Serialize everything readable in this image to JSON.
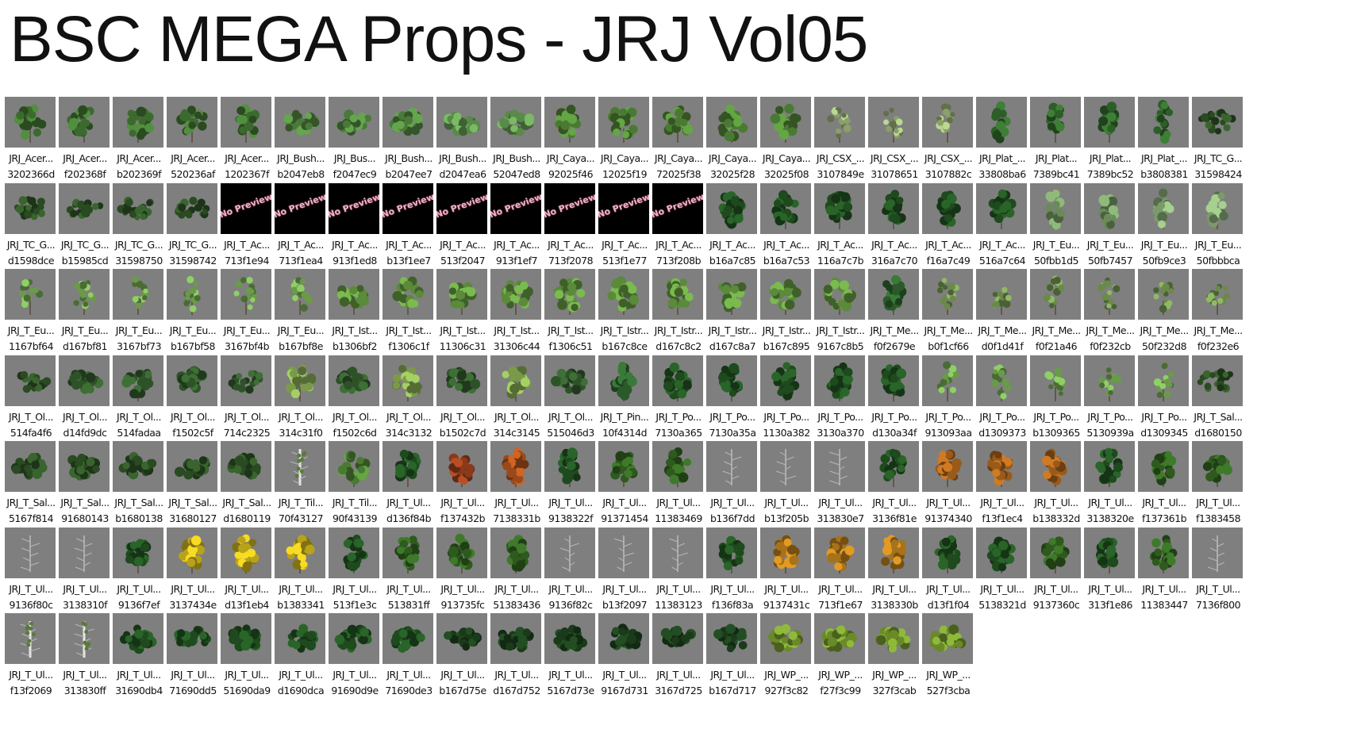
{
  "title": "BSC MEGA Props - JRJ Vol05",
  "colors": {
    "thumb_bg": "#7f7f7f",
    "no_preview_bg": "#000000",
    "no_preview_text": "#e9b8c8"
  },
  "items": [
    {
      "name": "JRJ_Acer...",
      "hash": "3202366d",
      "kind": "tree",
      "color": "#3c6a2e"
    },
    {
      "name": "JRJ_Acer...",
      "hash": "f202368f",
      "kind": "tree",
      "color": "#3c6a2e"
    },
    {
      "name": "JRJ_Acer...",
      "hash": "b202369f",
      "kind": "tree",
      "color": "#3c6a2e"
    },
    {
      "name": "JRJ_Acer...",
      "hash": "520236af",
      "kind": "tree",
      "color": "#3c6a2e"
    },
    {
      "name": "JRJ_Acer...",
      "hash": "1202367f",
      "kind": "tree",
      "color": "#3c6a2e"
    },
    {
      "name": "JRJ_Bush...",
      "hash": "b2047eb8",
      "kind": "bush",
      "color": "#4a7a3a"
    },
    {
      "name": "JRJ_Bus...",
      "hash": "f2047ec9",
      "kind": "bush",
      "color": "#4a7a3a"
    },
    {
      "name": "JRJ_Bush...",
      "hash": "b2047ee7",
      "kind": "bush",
      "color": "#4a7a3a"
    },
    {
      "name": "JRJ_Bush...",
      "hash": "d2047ea6",
      "kind": "bush",
      "color": "#5a8a4a"
    },
    {
      "name": "JRJ_Bush...",
      "hash": "52047ed8",
      "kind": "bush",
      "color": "#5a8a4a"
    },
    {
      "name": "JRJ_Caya...",
      "hash": "92025f46",
      "kind": "tree",
      "color": "#4a7a32"
    },
    {
      "name": "JRJ_Caya...",
      "hash": "12025f19",
      "kind": "tree",
      "color": "#4a7a32"
    },
    {
      "name": "JRJ_Caya...",
      "hash": "72025f38",
      "kind": "tree",
      "color": "#4a7a32"
    },
    {
      "name": "JRJ_Caya...",
      "hash": "32025f28",
      "kind": "tree",
      "color": "#4a7a32"
    },
    {
      "name": "JRJ_Caya...",
      "hash": "32025f08",
      "kind": "tree",
      "color": "#4a7a32"
    },
    {
      "name": "JRJ_CSX_...",
      "hash": "3107849e",
      "kind": "sparse",
      "color": "#8aa06a"
    },
    {
      "name": "JRJ_CSX_...",
      "hash": "31078651",
      "kind": "sparse",
      "color": "#8aa06a"
    },
    {
      "name": "JRJ_CSX_...",
      "hash": "3107882c",
      "kind": "sparse",
      "color": "#8aa06a"
    },
    {
      "name": "JRJ_Plat_...",
      "hash": "33808ba6",
      "kind": "tall",
      "color": "#2e5e28"
    },
    {
      "name": "JRJ_Plat...",
      "hash": "7389bc41",
      "kind": "tall",
      "color": "#2e5e28"
    },
    {
      "name": "JRJ_Plat...",
      "hash": "7389bc52",
      "kind": "tall",
      "color": "#2e5e28"
    },
    {
      "name": "JRJ_Plat_...",
      "hash": "b3808381",
      "kind": "tall",
      "color": "#2e5e28"
    },
    {
      "name": "JRJ_TC_G...",
      "hash": "31598424",
      "kind": "spread",
      "color": "#2a4a22"
    },
    {
      "name": "JRJ_TC_G...",
      "hash": "d1598dce",
      "kind": "spread",
      "color": "#2a4a22"
    },
    {
      "name": "JRJ_TC_G...",
      "hash": "b15985cd",
      "kind": "spread",
      "color": "#2a4a22"
    },
    {
      "name": "JRJ_TC_G...",
      "hash": "31598750",
      "kind": "spread",
      "color": "#2a4a22"
    },
    {
      "name": "JRJ_TC_G...",
      "hash": "31598742",
      "kind": "spread",
      "color": "#2a4a22"
    },
    {
      "name": "JRJ_T_Ac...",
      "hash": "713f1e94",
      "kind": "np",
      "color": "#000000"
    },
    {
      "name": "JRJ_T_Ac...",
      "hash": "713f1ea4",
      "kind": "np",
      "color": "#000000"
    },
    {
      "name": "JRJ_T_Ac...",
      "hash": "913f1ed8",
      "kind": "np",
      "color": "#000000"
    },
    {
      "name": "JRJ_T_Ac...",
      "hash": "b13f1ee7",
      "kind": "np",
      "color": "#000000"
    },
    {
      "name": "JRJ_T_Ac...",
      "hash": "513f2047",
      "kind": "np",
      "color": "#000000"
    },
    {
      "name": "JRJ_T_Ac...",
      "hash": "913f1ef7",
      "kind": "np",
      "color": "#000000"
    },
    {
      "name": "JRJ_T_Ac...",
      "hash": "713f2078",
      "kind": "np",
      "color": "#000000"
    },
    {
      "name": "JRJ_T_Ac...",
      "hash": "513f1e77",
      "kind": "np",
      "color": "#000000"
    },
    {
      "name": "JRJ_T_Ac...",
      "hash": "713f208b",
      "kind": "np",
      "color": "#000000"
    },
    {
      "name": "JRJ_T_Ac...",
      "hash": "b16a7c85",
      "kind": "round",
      "color": "#1e4a1e"
    },
    {
      "name": "JRJ_T_Ac...",
      "hash": "b16a7c53",
      "kind": "round",
      "color": "#1e4a1e"
    },
    {
      "name": "JRJ_T_Ac...",
      "hash": "116a7c7b",
      "kind": "round",
      "color": "#1e4a1e"
    },
    {
      "name": "JRJ_T_Ac...",
      "hash": "316a7c70",
      "kind": "round",
      "color": "#1e4a1e"
    },
    {
      "name": "JRJ_T_Ac...",
      "hash": "f16a7c49",
      "kind": "round",
      "color": "#1e4a1e"
    },
    {
      "name": "JRJ_T_Ac...",
      "hash": "516a7c64",
      "kind": "round",
      "color": "#1e4a1e"
    },
    {
      "name": "JRJ_T_Eu...",
      "hash": "50fbb1d5",
      "kind": "tall",
      "color": "#6a8a5a"
    },
    {
      "name": "JRJ_T_Eu...",
      "hash": "50fb7457",
      "kind": "tall",
      "color": "#6a8a5a"
    },
    {
      "name": "JRJ_T_Eu...",
      "hash": "50fb9ce3",
      "kind": "tall",
      "color": "#7a9a6a"
    },
    {
      "name": "JRJ_T_Eu...",
      "hash": "50fbbbca",
      "kind": "tall",
      "color": "#7a9a6a"
    },
    {
      "name": "JRJ_T_Eu...",
      "hash": "1167bf64",
      "kind": "sparse",
      "color": "#6a9a4a"
    },
    {
      "name": "JRJ_T_Eu...",
      "hash": "d167bf81",
      "kind": "sparse",
      "color": "#6a9a4a"
    },
    {
      "name": "JRJ_T_Eu...",
      "hash": "3167bf73",
      "kind": "sparse",
      "color": "#6a9a4a"
    },
    {
      "name": "JRJ_T_Eu...",
      "hash": "b167bf58",
      "kind": "sparse",
      "color": "#6a9a4a"
    },
    {
      "name": "JRJ_T_Eu...",
      "hash": "3167bf4b",
      "kind": "sparse",
      "color": "#6a9a4a"
    },
    {
      "name": "JRJ_T_Eu...",
      "hash": "b167bf8e",
      "kind": "sparse",
      "color": "#6a9a4a"
    },
    {
      "name": "JRJ_T_Ist...",
      "hash": "b1306bf2",
      "kind": "tree",
      "color": "#5a8a3a"
    },
    {
      "name": "JRJ_T_Ist...",
      "hash": "f1306c1f",
      "kind": "tree",
      "color": "#5a8a3a"
    },
    {
      "name": "JRJ_T_Ist...",
      "hash": "11306c31",
      "kind": "tree",
      "color": "#5a8a3a"
    },
    {
      "name": "JRJ_T_Ist...",
      "hash": "31306c44",
      "kind": "tree",
      "color": "#5a8a3a"
    },
    {
      "name": "JRJ_T_Ist...",
      "hash": "f1306c51",
      "kind": "tree",
      "color": "#5a8a3a"
    },
    {
      "name": "JRJ_T_Istr...",
      "hash": "b167c8ce",
      "kind": "tree",
      "color": "#5a8a3a"
    },
    {
      "name": "JRJ_T_Istr...",
      "hash": "d167c8c2",
      "kind": "tree",
      "color": "#5a8a3a"
    },
    {
      "name": "JRJ_T_Istr...",
      "hash": "d167c8a7",
      "kind": "tree",
      "color": "#5a8a3a"
    },
    {
      "name": "JRJ_T_Istr...",
      "hash": "b167c895",
      "kind": "tree",
      "color": "#5a8a3a"
    },
    {
      "name": "JRJ_T_Istr...",
      "hash": "9167c8b5",
      "kind": "tree",
      "color": "#5a8a3a"
    },
    {
      "name": "JRJ_T_Me...",
      "hash": "f0f2679e",
      "kind": "round",
      "color": "#2a5a2a"
    },
    {
      "name": "JRJ_T_Me...",
      "hash": "b0f1cf66",
      "kind": "sparse",
      "color": "#6a8a4a"
    },
    {
      "name": "JRJ_T_Me...",
      "hash": "d0f1d41f",
      "kind": "sparse",
      "color": "#6a8a4a"
    },
    {
      "name": "JRJ_T_Me...",
      "hash": "f0f21a46",
      "kind": "sparse",
      "color": "#6a8a4a"
    },
    {
      "name": "JRJ_T_Me...",
      "hash": "f0f232cb",
      "kind": "sparse",
      "color": "#6a8a4a"
    },
    {
      "name": "JRJ_T_Me...",
      "hash": "50f232d8",
      "kind": "sparse",
      "color": "#6a8a4a"
    },
    {
      "name": "JRJ_T_Me...",
      "hash": "f0f232e6",
      "kind": "sparse",
      "color": "#6a8a4a"
    },
    {
      "name": "JRJ_T_Ol...",
      "hash": "514fa4f6",
      "kind": "spread",
      "color": "#2a4a22"
    },
    {
      "name": "JRJ_T_Ol...",
      "hash": "d14fd9dc",
      "kind": "bush",
      "color": "#2e5228"
    },
    {
      "name": "JRJ_T_Ol...",
      "hash": "514fadaa",
      "kind": "tree",
      "color": "#2e5228"
    },
    {
      "name": "JRJ_T_Ol...",
      "hash": "f1502c5f",
      "kind": "bush",
      "color": "#2e5228"
    },
    {
      "name": "JRJ_T_Ol...",
      "hash": "714c2325",
      "kind": "spread",
      "color": "#2e5228"
    },
    {
      "name": "JRJ_T_Ol...",
      "hash": "314c31f0",
      "kind": "tree",
      "color": "#7a9a4a"
    },
    {
      "name": "JRJ_T_Ol...",
      "hash": "f1502c6d",
      "kind": "bush",
      "color": "#2e5228"
    },
    {
      "name": "JRJ_T_Ol...",
      "hash": "314c3132",
      "kind": "tree",
      "color": "#7a9a4a"
    },
    {
      "name": "JRJ_T_Ol...",
      "hash": "b1502c7d",
      "kind": "bush",
      "color": "#2e5228"
    },
    {
      "name": "JRJ_T_Ol...",
      "hash": "314c3145",
      "kind": "tree",
      "color": "#7a9a4a"
    },
    {
      "name": "JRJ_T_Ol...",
      "hash": "515046d3",
      "kind": "bush",
      "color": "#2e5228"
    },
    {
      "name": "JRJ_T_Pin...",
      "hash": "10f4314d",
      "kind": "round",
      "color": "#2a5a2a"
    },
    {
      "name": "JRJ_T_Po...",
      "hash": "7130a365",
      "kind": "round",
      "color": "#1e4a1e"
    },
    {
      "name": "JRJ_T_Po...",
      "hash": "7130a35a",
      "kind": "round",
      "color": "#1e4a1e"
    },
    {
      "name": "JRJ_T_Po...",
      "hash": "1130a382",
      "kind": "round",
      "color": "#1e4a1e"
    },
    {
      "name": "JRJ_T_Po...",
      "hash": "3130a370",
      "kind": "round",
      "color": "#1e4a1e"
    },
    {
      "name": "JRJ_T_Po...",
      "hash": "d130a34f",
      "kind": "round",
      "color": "#1e4a1e"
    },
    {
      "name": "JRJ_T_Po...",
      "hash": "913093aa",
      "kind": "sparse",
      "color": "#6a9a4a"
    },
    {
      "name": "JRJ_T_Po...",
      "hash": "d1309373",
      "kind": "sparse",
      "color": "#6a9a4a"
    },
    {
      "name": "JRJ_T_Po...",
      "hash": "b1309365",
      "kind": "sparse",
      "color": "#6a9a4a"
    },
    {
      "name": "JRJ_T_Po...",
      "hash": "5130939a",
      "kind": "sparse",
      "color": "#6a9a4a"
    },
    {
      "name": "JRJ_T_Po...",
      "hash": "d1309345",
      "kind": "sparse",
      "color": "#6a9a4a"
    },
    {
      "name": "JRJ_T_Sal...",
      "hash": "d1680150",
      "kind": "spread",
      "color": "#2a4a22"
    },
    {
      "name": "JRJ_T_Sal...",
      "hash": "5167f814",
      "kind": "bush",
      "color": "#2a4a22"
    },
    {
      "name": "JRJ_T_Sal...",
      "hash": "91680143",
      "kind": "bush",
      "color": "#2a4a22"
    },
    {
      "name": "JRJ_T_Sal...",
      "hash": "b1680138",
      "kind": "bush",
      "color": "#2a4a22"
    },
    {
      "name": "JRJ_T_Sal...",
      "hash": "31680127",
      "kind": "bush",
      "color": "#2a4a22"
    },
    {
      "name": "JRJ_T_Sal...",
      "hash": "d1680119",
      "kind": "bush",
      "color": "#2a4a22"
    },
    {
      "name": "JRJ_T_Til...",
      "hash": "70f43127",
      "kind": "birch",
      "color": "#aab8a0"
    },
    {
      "name": "JRJ_T_Til...",
      "hash": "90f43139",
      "kind": "tree",
      "color": "#4a7a32"
    },
    {
      "name": "JRJ_T_Ul...",
      "hash": "d136f84b",
      "kind": "round",
      "color": "#1e4a1e"
    },
    {
      "name": "JRJ_T_Ul...",
      "hash": "f137432b",
      "kind": "round",
      "color": "#8a3a1a"
    },
    {
      "name": "JRJ_T_Ul...",
      "hash": "7138331b",
      "kind": "round",
      "color": "#9a4a1a"
    },
    {
      "name": "JRJ_T_Ul...",
      "hash": "9138322f",
      "kind": "round",
      "color": "#1e4a1e"
    },
    {
      "name": "JRJ_T_Ul...",
      "hash": "91371454",
      "kind": "round",
      "color": "#2e5a1e"
    },
    {
      "name": "JRJ_T_Ul...",
      "hash": "11383469",
      "kind": "round",
      "color": "#2e5a1e"
    },
    {
      "name": "JRJ_T_Ul...",
      "hash": "b136f7dd",
      "kind": "bare",
      "color": "#c8c8c8"
    },
    {
      "name": "JRJ_T_Ul...",
      "hash": "b13f205b",
      "kind": "bare",
      "color": "#c8c8c8"
    },
    {
      "name": "JRJ_T_Ul...",
      "hash": "313830e7",
      "kind": "bare",
      "color": "#c8c8c8"
    },
    {
      "name": "JRJ_T_Ul...",
      "hash": "3136f81e",
      "kind": "round",
      "color": "#1e4a1e"
    },
    {
      "name": "JRJ_T_Ul...",
      "hash": "91374340",
      "kind": "round",
      "color": "#9a5a1a"
    },
    {
      "name": "JRJ_T_Ul...",
      "hash": "f13f1ec4",
      "kind": "round",
      "color": "#9a5a1a"
    },
    {
      "name": "JRJ_T_Ul...",
      "hash": "b138332d",
      "kind": "round",
      "color": "#9a5a1a"
    },
    {
      "name": "JRJ_T_Ul...",
      "hash": "3138320e",
      "kind": "round",
      "color": "#1e4a1e"
    },
    {
      "name": "JRJ_T_Ul...",
      "hash": "f137361b",
      "kind": "round",
      "color": "#2e5a1e"
    },
    {
      "name": "JRJ_T_Ul...",
      "hash": "f1383458",
      "kind": "round",
      "color": "#2e5a1e"
    },
    {
      "name": "JRJ_T_Ul...",
      "hash": "9136f80c",
      "kind": "bare",
      "color": "#c8c8c8"
    },
    {
      "name": "JRJ_T_Ul...",
      "hash": "3138310f",
      "kind": "bare",
      "color": "#c8c8c8"
    },
    {
      "name": "JRJ_T_Ul...",
      "hash": "9136f7ef",
      "kind": "round",
      "color": "#1e4a1e"
    },
    {
      "name": "JRJ_T_Ul...",
      "hash": "3137434e",
      "kind": "round",
      "color": "#b8a21a"
    },
    {
      "name": "JRJ_T_Ul...",
      "hash": "d13f1eb4",
      "kind": "round",
      "color": "#b8a21a"
    },
    {
      "name": "JRJ_T_Ul...",
      "hash": "b1383341",
      "kind": "round",
      "color": "#b8a21a"
    },
    {
      "name": "JRJ_T_Ul...",
      "hash": "513f1e3c",
      "kind": "round",
      "color": "#1e4a1e"
    },
    {
      "name": "JRJ_T_Ul...",
      "hash": "513831ff",
      "kind": "round",
      "color": "#2e5a1e"
    },
    {
      "name": "JRJ_T_Ul...",
      "hash": "913735fc",
      "kind": "round",
      "color": "#2e5a1e"
    },
    {
      "name": "JRJ_T_Ul...",
      "hash": "51383436",
      "kind": "round",
      "color": "#2e5a1e"
    },
    {
      "name": "JRJ_T_Ul...",
      "hash": "9136f82c",
      "kind": "bare",
      "color": "#c8c8c8"
    },
    {
      "name": "JRJ_T_Ul...",
      "hash": "b13f2097",
      "kind": "bare",
      "color": "#c8c8c8"
    },
    {
      "name": "JRJ_T_Ul...",
      "hash": "11383123",
      "kind": "bare",
      "color": "#c8c8c8"
    },
    {
      "name": "JRJ_T_Ul...",
      "hash": "f136f83a",
      "kind": "round",
      "color": "#1e4a1e"
    },
    {
      "name": "JRJ_T_Ul...",
      "hash": "9137431c",
      "kind": "round",
      "color": "#a8721a"
    },
    {
      "name": "JRJ_T_Ul...",
      "hash": "713f1e67",
      "kind": "round",
      "color": "#a8721a"
    },
    {
      "name": "JRJ_T_Ul...",
      "hash": "3138330b",
      "kind": "round",
      "color": "#a8721a"
    },
    {
      "name": "JRJ_T_Ul...",
      "hash": "d13f1f04",
      "kind": "round",
      "color": "#1e4a1e"
    },
    {
      "name": "JRJ_T_Ul...",
      "hash": "5138321d",
      "kind": "round",
      "color": "#1e4a1e"
    },
    {
      "name": "JRJ_T_Ul...",
      "hash": "9137360c",
      "kind": "round",
      "color": "#2e5a1e"
    },
    {
      "name": "JRJ_T_Ul...",
      "hash": "313f1e86",
      "kind": "round",
      "color": "#1e4a1e"
    },
    {
      "name": "JRJ_T_Ul...",
      "hash": "11383447",
      "kind": "round",
      "color": "#2e5a1e"
    },
    {
      "name": "JRJ_T_Ul...",
      "hash": "7136f800",
      "kind": "bare",
      "color": "#c8c8c8"
    },
    {
      "name": "JRJ_T_Ul...",
      "hash": "f13f2069",
      "kind": "birch",
      "color": "#c8c8c8"
    },
    {
      "name": "JRJ_T_Ul...",
      "hash": "313830ff",
      "kind": "birch",
      "color": "#c8c8c8"
    },
    {
      "name": "JRJ_T_Ul...",
      "hash": "31690db4",
      "kind": "bush",
      "color": "#1e4a1e"
    },
    {
      "name": "JRJ_T_Ul...",
      "hash": "71690dd5",
      "kind": "bush",
      "color": "#1e4a1e"
    },
    {
      "name": "JRJ_T_Ul...",
      "hash": "51690da9",
      "kind": "bush",
      "color": "#1e4a1e"
    },
    {
      "name": "JRJ_T_Ul...",
      "hash": "d1690dca",
      "kind": "bush",
      "color": "#1e4a1e"
    },
    {
      "name": "JRJ_T_Ul...",
      "hash": "91690d9e",
      "kind": "bush",
      "color": "#1e4a1e"
    },
    {
      "name": "JRJ_T_Ul...",
      "hash": "71690de3",
      "kind": "bush",
      "color": "#1e4a1e"
    },
    {
      "name": "JRJ_T_Ul...",
      "hash": "b167d75e",
      "kind": "bush",
      "color": "#1a3a1a"
    },
    {
      "name": "JRJ_T_Ul...",
      "hash": "d167d752",
      "kind": "bush",
      "color": "#1a3a1a"
    },
    {
      "name": "JRJ_T_Ul...",
      "hash": "5167d73e",
      "kind": "bush",
      "color": "#1a3a1a"
    },
    {
      "name": "JRJ_T_Ul...",
      "hash": "9167d731",
      "kind": "bush",
      "color": "#1a3a1a"
    },
    {
      "name": "JRJ_T_Ul...",
      "hash": "3167d725",
      "kind": "bush",
      "color": "#1a3a1a"
    },
    {
      "name": "JRJ_T_Ul...",
      "hash": "b167d717",
      "kind": "bush",
      "color": "#1a3a1a"
    },
    {
      "name": "JRJ_WP_...",
      "hash": "927f3c82",
      "kind": "bush",
      "color": "#6a8a2a"
    },
    {
      "name": "JRJ_WP_...",
      "hash": "f27f3c99",
      "kind": "bush",
      "color": "#6a8a2a"
    },
    {
      "name": "JRJ_WP_...",
      "hash": "327f3cab",
      "kind": "bush",
      "color": "#6a8a2a"
    },
    {
      "name": "JRJ_WP_...",
      "hash": "527f3cba",
      "kind": "bush",
      "color": "#6a8a2a"
    }
  ],
  "no_preview_label": "No Preview"
}
